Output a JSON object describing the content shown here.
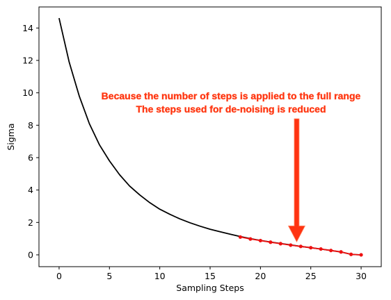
{
  "chart_data": {
    "type": "line",
    "title": "",
    "xlabel": "Sampling Steps",
    "ylabel": "Sigma",
    "xlim": [
      -2,
      32
    ],
    "ylim": [
      -0.73,
      15.3
    ],
    "xticks": [
      0,
      5,
      10,
      15,
      20,
      25,
      30
    ],
    "yticks": [
      0,
      2,
      4,
      6,
      8,
      10,
      12,
      14
    ],
    "grid": false,
    "series": [
      {
        "color": "#000000",
        "marker": "none",
        "x": [
          0,
          1,
          2,
          3,
          4,
          5,
          6,
          7,
          8,
          9,
          10,
          11,
          12,
          13,
          14,
          15,
          16,
          17,
          18,
          19,
          20,
          21,
          22,
          23,
          24,
          25,
          26,
          27,
          28,
          29,
          30
        ],
        "y": [
          14.61,
          11.9,
          9.8,
          8.1,
          6.8,
          5.8,
          4.95,
          4.25,
          3.7,
          3.22,
          2.82,
          2.5,
          2.22,
          1.98,
          1.77,
          1.58,
          1.42,
          1.27,
          1.13,
          1.0,
          0.89,
          0.79,
          0.7,
          0.61,
          0.52,
          0.44,
          0.36,
          0.27,
          0.18,
          0.03,
          0.0
        ]
      },
      {
        "color": "#ee1111",
        "marker": "dot",
        "x": [
          18,
          19,
          20,
          21,
          22,
          23,
          24,
          25,
          26,
          27,
          28,
          29,
          30
        ],
        "y": [
          1.1,
          0.98,
          0.88,
          0.78,
          0.69,
          0.6,
          0.52,
          0.44,
          0.36,
          0.27,
          0.18,
          0.03,
          0.0
        ]
      }
    ],
    "annotation": {
      "lines": [
        "Because the number of steps is applied to the full range",
        "The steps used for de-noising is reduced"
      ],
      "color": "#ff3311",
      "arrow_x": 23.6,
      "arrow_y_start": 8.4,
      "arrow_y_end": 0.8
    }
  }
}
